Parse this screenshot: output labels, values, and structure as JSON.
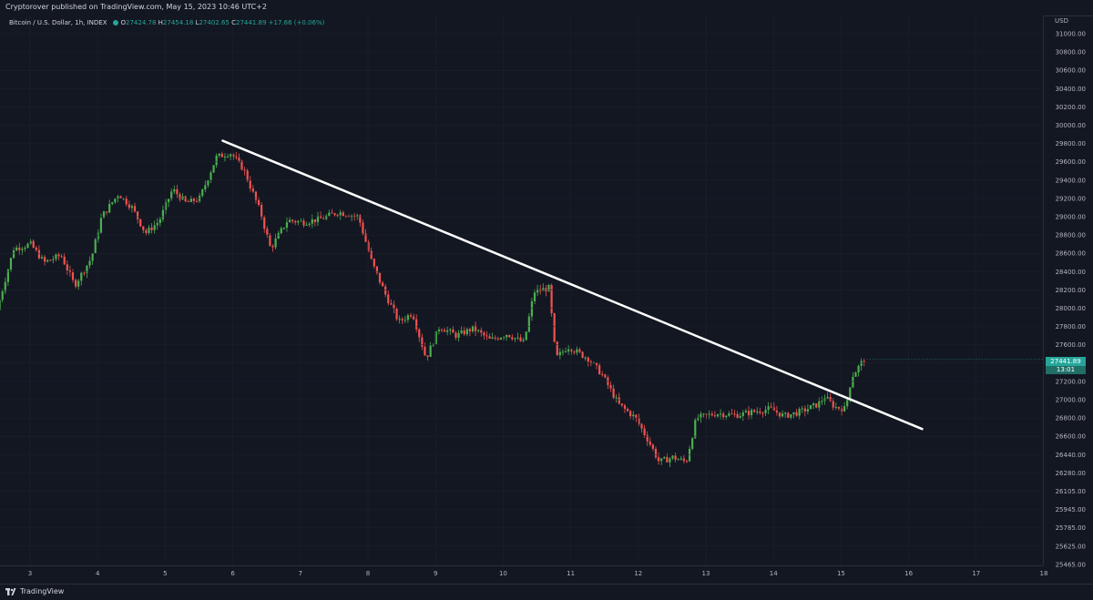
{
  "header": {
    "publisher_text": "Cryptorover published on TradingView.com, May 15, 2023 10:46 UTC+2"
  },
  "legend": {
    "symbol": "Bitcoin / U.S. Dollar, 1h, INDEX",
    "open_label": "O",
    "open": "27424.78",
    "high_label": "H",
    "high": "27454.18",
    "low_label": "L",
    "low": "27402.65",
    "close_label": "C",
    "close": "27441.89",
    "change": "+17.66 (+0.06%)"
  },
  "price_tag": {
    "price": "27441.89",
    "countdown": "13:01"
  },
  "footer": {
    "brand": "TradingView"
  },
  "colors": {
    "background": "#131722",
    "up": "#26a69a",
    "up_candle": "#4caf50",
    "down_candle": "#ef5350",
    "trendline": "#ffffff",
    "axis_text": "#b2b5be",
    "grid": "#1e222d"
  },
  "chart_data": {
    "type": "candlestick",
    "title": "Bitcoin / U.S. Dollar, 1h, INDEX",
    "y_unit": "USD",
    "y_tick_labels": [
      "31000.00",
      "30800.00",
      "30600.00",
      "30400.00",
      "30200.00",
      "30000.00",
      "29800.00",
      "29600.00",
      "29400.00",
      "29200.00",
      "29000.00",
      "28800.00",
      "28600.00",
      "28400.00",
      "28200.00",
      "28000.00",
      "27800.00",
      "27600.00",
      "27400.00",
      "27200.00",
      "27000.00",
      "26800.00",
      "26600.00",
      "26440.00",
      "26280.00",
      "26105.00",
      "25945.00",
      "25785.00",
      "25625.00",
      "25465.00"
    ],
    "x_tick_labels": [
      "3",
      "4",
      "5",
      "6",
      "7",
      "8",
      "9",
      "10",
      "11",
      "12",
      "13",
      "14",
      "15",
      "16",
      "17",
      "18"
    ],
    "x_range_days": [
      2.55,
      18.1
    ],
    "ohlc_anchor_path": [
      [
        2.55,
        27980
      ],
      [
        2.8,
        28650
      ],
      [
        3.05,
        28700
      ],
      [
        3.25,
        28500
      ],
      [
        3.5,
        28580
      ],
      [
        3.7,
        28250
      ],
      [
        3.95,
        28550
      ],
      [
        4.1,
        29000
      ],
      [
        4.35,
        29250
      ],
      [
        4.55,
        29100
      ],
      [
        4.75,
        28820
      ],
      [
        4.95,
        28950
      ],
      [
        5.15,
        29300
      ],
      [
        5.35,
        29150
      ],
      [
        5.55,
        29200
      ],
      [
        5.8,
        29650
      ],
      [
        6.0,
        29700
      ],
      [
        6.2,
        29520
      ],
      [
        6.45,
        29050
      ],
      [
        6.6,
        28650
      ],
      [
        6.85,
        28960
      ],
      [
        7.1,
        28940
      ],
      [
        7.35,
        28980
      ],
      [
        7.6,
        29050
      ],
      [
        7.9,
        29000
      ],
      [
        8.1,
        28500
      ],
      [
        8.3,
        28150
      ],
      [
        8.5,
        27850
      ],
      [
        8.7,
        27950
      ],
      [
        8.9,
        27450
      ],
      [
        9.1,
        27800
      ],
      [
        9.35,
        27700
      ],
      [
        9.6,
        27780
      ],
      [
        9.85,
        27650
      ],
      [
        10.1,
        27720
      ],
      [
        10.35,
        27620
      ],
      [
        10.5,
        28180
      ],
      [
        10.72,
        28220
      ],
      [
        10.82,
        27450
      ],
      [
        11.0,
        27580
      ],
      [
        11.3,
        27450
      ],
      [
        11.5,
        27280
      ],
      [
        11.75,
        26950
      ],
      [
        12.0,
        26800
      ],
      [
        12.2,
        26540
      ],
      [
        12.35,
        26320
      ],
      [
        12.55,
        26370
      ],
      [
        12.75,
        26320
      ],
      [
        12.9,
        26800
      ],
      [
        13.2,
        26850
      ],
      [
        13.5,
        26830
      ],
      [
        13.75,
        26870
      ],
      [
        14.0,
        26900
      ],
      [
        14.2,
        26820
      ],
      [
        14.45,
        26870
      ],
      [
        14.7,
        26950
      ],
      [
        14.8,
        27030
      ],
      [
        14.95,
        26920
      ],
      [
        15.1,
        26900
      ],
      [
        15.2,
        27250
      ],
      [
        15.38,
        27442
      ]
    ],
    "trendline": {
      "start": [
        5.85,
        29830
      ],
      "end": [
        16.2,
        26680
      ]
    },
    "last_price": 27441.89
  }
}
